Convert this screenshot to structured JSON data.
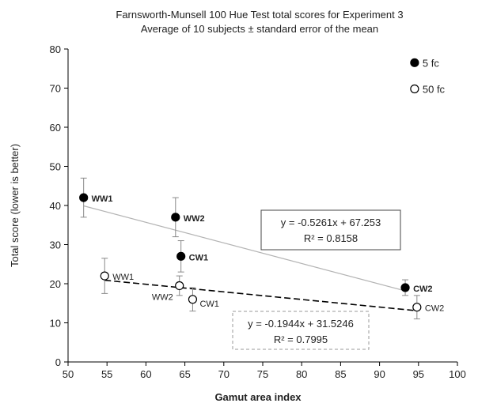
{
  "chart_data": {
    "type": "scatter",
    "title": "Farnsworth-Munsell 100 Hue Test total scores for Experiment 3",
    "subtitle": "Average of 10 subjects ± standard error of the mean",
    "xlabel": "Gamut area index",
    "ylabel": "Total score (lower is better)",
    "xlim": [
      50,
      100
    ],
    "ylim": [
      0,
      80
    ],
    "xticks": [
      50,
      55,
      60,
      65,
      70,
      75,
      80,
      85,
      90,
      95,
      100
    ],
    "yticks": [
      0,
      10,
      20,
      30,
      40,
      50,
      60,
      70,
      80
    ],
    "grid": false,
    "legend_position": "top-right",
    "series": [
      {
        "name": "5 fc",
        "marker": "filled-circle",
        "color": "#000000",
        "points": [
          {
            "label": "WW1",
            "x": 52,
            "y": 42,
            "err": 5
          },
          {
            "label": "WW2",
            "x": 63.8,
            "y": 37,
            "err": 5
          },
          {
            "label": "CW1",
            "x": 64.5,
            "y": 27,
            "err": 4
          },
          {
            "label": "CW2",
            "x": 93.3,
            "y": 19,
            "err": 2
          }
        ],
        "trendline": {
          "slope": -0.5261,
          "intercept": 67.253,
          "style": "solid",
          "color": "#b3b3b3",
          "x_range": [
            52,
            93.3
          ]
        },
        "equation": "y = -0.5261x + 67.253",
        "r2": "R² = 0.8158"
      },
      {
        "name": "50 fc",
        "marker": "open-circle",
        "color": "#000000",
        "points": [
          {
            "label": "WW1",
            "x": 54.7,
            "y": 22,
            "err": 4.5
          },
          {
            "label": "WW2",
            "x": 64.3,
            "y": 19.5,
            "err": 2.5
          },
          {
            "label": "CW1",
            "x": 66,
            "y": 16,
            "err": 3
          },
          {
            "label": "CW2",
            "x": 94.8,
            "y": 14,
            "err": 3
          }
        ],
        "trendline": {
          "slope": -0.1944,
          "intercept": 31.5246,
          "style": "dashed",
          "color": "#000000",
          "x_range": [
            54.7,
            94.8
          ]
        },
        "equation": "y = -0.1944x + 31.5246",
        "r2": "R² = 0.7995"
      }
    ]
  }
}
